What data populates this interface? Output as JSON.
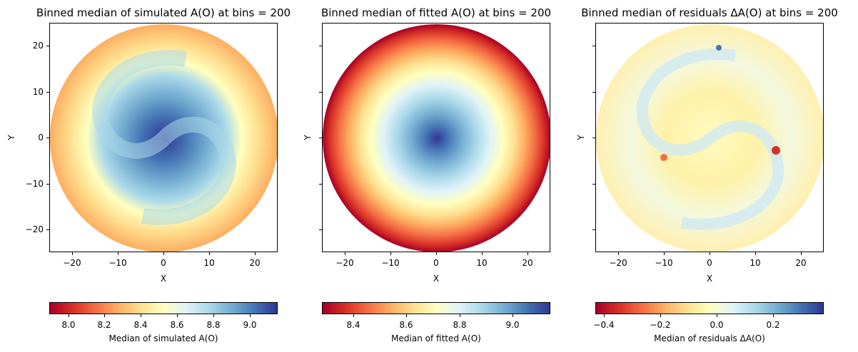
{
  "chart_data": [
    {
      "type": "heatmap",
      "title": "Binned median of simulated A(O) at bins = 200",
      "xlabel": "X",
      "ylabel": "Y",
      "xlim": [
        -25,
        25
      ],
      "ylim": [
        -25,
        25
      ],
      "xticks": [
        "−20",
        "−10",
        "0",
        "10",
        "20"
      ],
      "yticks": [
        "20",
        "10",
        "0",
        "−10",
        "−20"
      ],
      "colormap": "RdYlBu",
      "colorbar": {
        "label": "Median of simulated A(O)",
        "range": [
          7.9,
          9.15
        ],
        "ticks": [
          "8.0",
          "8.2",
          "8.4",
          "8.6",
          "8.8",
          "9.0"
        ],
        "tick_values": [
          8.0,
          8.2,
          8.4,
          8.6,
          8.8,
          9.0
        ]
      },
      "data_description": "Circular disc of radius 25; values peak (~9.1) at center in a spiral pattern, decreasing to ~8.1 near the edge"
    },
    {
      "type": "heatmap",
      "title": "Binned median of fitted A(O) at bins = 200",
      "xlabel": "X",
      "ylabel": "Y",
      "xlim": [
        -25,
        25
      ],
      "ylim": [
        -25,
        25
      ],
      "xticks": [
        "−20",
        "−10",
        "0",
        "10",
        "20"
      ],
      "yticks": [
        "20",
        "10",
        "0",
        "−10",
        "−20"
      ],
      "colormap": "RdYlBu",
      "colorbar": {
        "label": "Median of fitted A(O)",
        "range": [
          8.27,
          9.13
        ],
        "ticks": [
          "8.4",
          "8.6",
          "8.8",
          "9.0"
        ],
        "tick_values": [
          8.4,
          8.6,
          8.8,
          9.0
        ]
      },
      "data_description": "Radially symmetric smooth gradient; maximum ~9.1 at center decreasing to ~8.3 at radius 25"
    },
    {
      "type": "heatmap",
      "title": "Binned median of residuals ΔA(O) at bins = 200",
      "xlabel": "X",
      "ylabel": "Y",
      "xlim": [
        -25,
        25
      ],
      "ylim": [
        -25,
        25
      ],
      "xticks": [
        "−20",
        "−10",
        "0",
        "10",
        "20"
      ],
      "yticks": [
        "20",
        "10",
        "0",
        "−10",
        "−20"
      ],
      "colormap": "RdYlBu",
      "colorbar": {
        "label": "Median of residuals ΔA(O)",
        "range": [
          -0.43,
          0.38
        ],
        "ticks": [
          "−0.4",
          "−0.2",
          "0.0",
          "0.2"
        ],
        "tick_values": [
          -0.4,
          -0.2,
          0.0,
          0.2
        ]
      },
      "data_description": "Residuals mostly near 0 with spiral arm structure; extremes ~-0.4 and ~0.35 in small clumps"
    }
  ],
  "colors": {
    "cmap_stops": [
      "#a50026",
      "#d73027",
      "#f46d43",
      "#fdae61",
      "#fee090",
      "#ffffbf",
      "#e0f3f8",
      "#abd9e9",
      "#74add1",
      "#4575b4",
      "#313695"
    ]
  }
}
